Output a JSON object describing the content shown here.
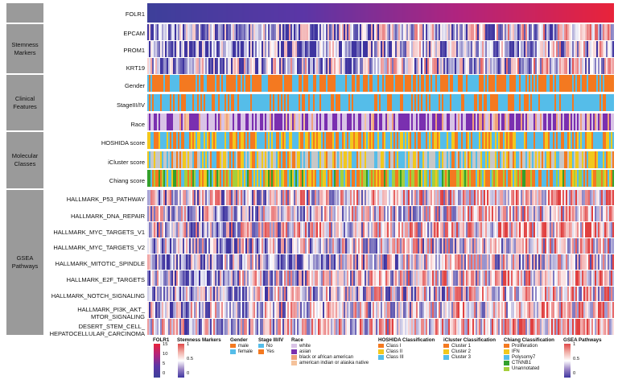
{
  "chart_data": {
    "type": "heatmap",
    "groups": [
      {
        "label": "",
        "rows": [
          "FOLR1"
        ]
      },
      {
        "label": "Stemness\nMarkers",
        "rows": [
          "EPCAM",
          "PROM1",
          "KRT19"
        ]
      },
      {
        "label": "Clinical\nFeatures",
        "rows": [
          "Gender",
          "StageIII/IV",
          "Race"
        ]
      },
      {
        "label": "Molecular\nClasses",
        "rows": [
          "HOSHIDA score",
          "iCluster score",
          "Chiang score"
        ]
      },
      {
        "label": "GSEA\nPathways",
        "rows": [
          "HALLMARK_P53_PATHWAY",
          "HALLMARK_DNA_REPAIR",
          "HALLMARK_MYC_TARGETS_V1",
          "HALLMARK_MYC_TARGETS_V2",
          "HALLMARK_MITOTIC_SPINDLE",
          "HALLMARK_E2F_TARGETS",
          "HALLMARK_NOTCH_SIGNALING",
          "HALLMARK_PI3K_AKT_\nMTOR_SIGNALING",
          "DESERT_STEM_CELL_\nHEPATOCELLULAR_CARCINOMA"
        ]
      }
    ],
    "legends": {
      "folr1": {
        "title": "FOLR1",
        "ticks": [
          "15",
          "10",
          "5",
          "0"
        ],
        "range": [
          0,
          15
        ]
      },
      "stemness": {
        "title": "Stemness Markers",
        "ticks": [
          "1",
          "0.5",
          "0"
        ],
        "range": [
          0,
          1
        ]
      },
      "gender": {
        "title": "Gender",
        "items": [
          {
            "label": "male",
            "color": "#f47920"
          },
          {
            "label": "female",
            "color": "#55bde9"
          }
        ]
      },
      "stage": {
        "title": "Stage III/IV",
        "items": [
          {
            "label": "No",
            "color": "#55bde9"
          },
          {
            "label": "Yes",
            "color": "#f47920"
          }
        ]
      },
      "race": {
        "title": "Race",
        "items": [
          {
            "label": "white",
            "color": "#d9c3e6"
          },
          {
            "label": "asian",
            "color": "#7a2fb0"
          },
          {
            "label": "black or african american",
            "color": "#f0a07a"
          },
          {
            "label": "american indian or alaska native",
            "color": "#f5c29b"
          }
        ]
      },
      "hoshida": {
        "title": "HOSHIDA Classification",
        "items": [
          {
            "label": "Class I",
            "color": "#f47920"
          },
          {
            "label": "Class II",
            "color": "#f2c81d"
          },
          {
            "label": "Class III",
            "color": "#55bde9"
          }
        ]
      },
      "icluster": {
        "title": "iCluster Classification",
        "items": [
          {
            "label": "Cluster 1",
            "color": "#f47920"
          },
          {
            "label": "Cluster 2",
            "color": "#f2c81d"
          },
          {
            "label": "Cluster 3",
            "color": "#55bde9"
          }
        ]
      },
      "chiang": {
        "title": "Chiang Classification",
        "items": [
          {
            "label": "Proliferation",
            "color": "#f47920"
          },
          {
            "label": "IFN",
            "color": "#f2c81d"
          },
          {
            "label": "Polysomy7",
            "color": "#55bde9"
          },
          {
            "label": "CTNNB1",
            "color": "#33a02c"
          },
          {
            "label": "Unannotated",
            "color": "#a6cf3c"
          }
        ]
      },
      "gsea": {
        "title": "GSEA Pathways",
        "ticks": [
          "1",
          "0.5",
          "0"
        ],
        "range": [
          0,
          1
        ]
      }
    }
  }
}
